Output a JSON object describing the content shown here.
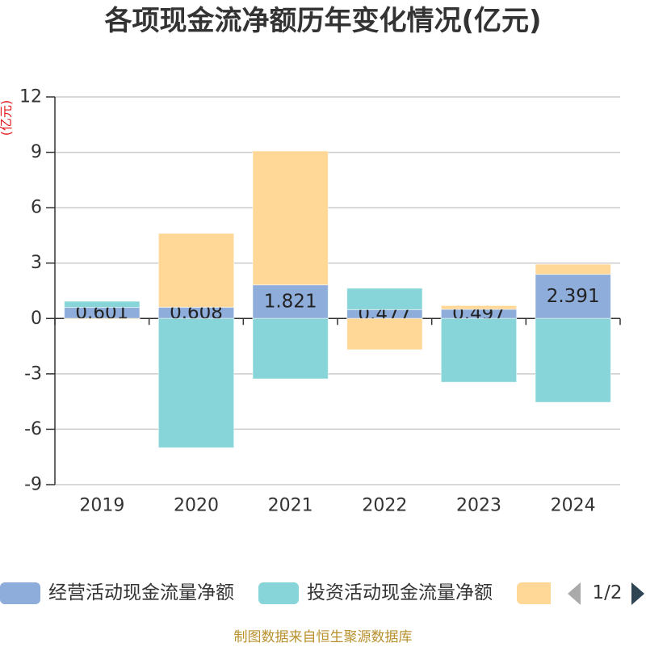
{
  "chart_data": {
    "type": "bar",
    "stacked": true,
    "title": "各项现金流净额历年变化情况(亿元)",
    "ylabel": "(亿元)",
    "xlabel": "",
    "categories": [
      "2019",
      "2020",
      "2021",
      "2022",
      "2023",
      "2024"
    ],
    "y_ticks": [
      12,
      9,
      6,
      3,
      0,
      -3,
      -6,
      -9
    ],
    "ylim": [
      -9,
      12
    ],
    "grid": true,
    "legend_position": "bottom",
    "series": [
      {
        "name": "经营活动现金流量净额",
        "color": "#8eadda",
        "values": [
          0.601,
          0.608,
          1.821,
          0.477,
          0.497,
          2.391
        ],
        "show_labels": true
      },
      {
        "name": "投资活动现金流量净额",
        "color": "#87d5d8",
        "values": [
          0.33,
          -7.0,
          -3.27,
          1.16,
          -3.45,
          -4.54
        ],
        "show_labels": false
      },
      {
        "color": "#ffd898",
        "values": [
          -0.04,
          4.0,
          7.25,
          -1.69,
          0.2,
          0.55
        ],
        "show_labels": false
      }
    ]
  },
  "legend": {
    "page_indicator": "1/2",
    "prev_icon": "triangle-left",
    "next_icon": "triangle-right"
  },
  "footer": {
    "source": "制图数据来自恒生聚源数据库"
  }
}
